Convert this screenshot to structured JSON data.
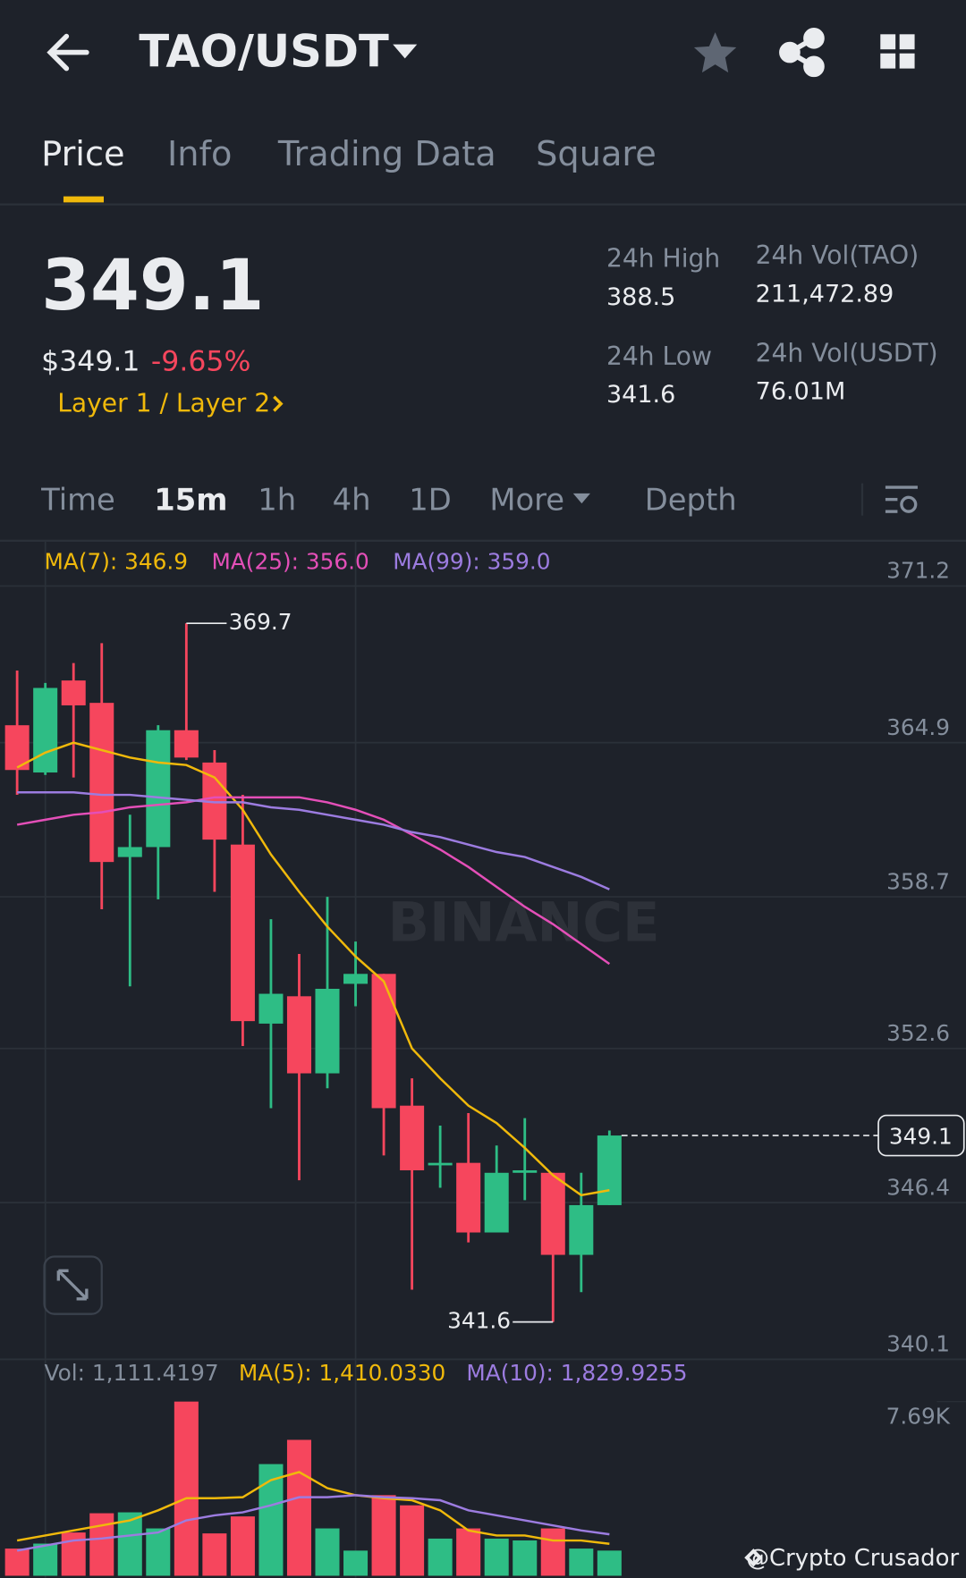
{
  "header": {
    "pair": "TAO/USDT"
  },
  "tabs": [
    "Price",
    "Info",
    "Trading Data",
    "Square"
  ],
  "price": {
    "last": "349.1",
    "usd": "$349.1",
    "change": "-9.65%",
    "tags": "Layer 1 / Layer 2"
  },
  "stats": [
    {
      "label": "24h High",
      "value": "388.5"
    },
    {
      "label": "24h Low",
      "value": "341.6"
    },
    {
      "label": "24h Vol(TAO)",
      "value": "211,472.89"
    },
    {
      "label": "24h Vol(USDT)",
      "value": "76.01M"
    }
  ],
  "intervals": [
    "Time",
    "15m",
    "1h",
    "4h",
    "1D",
    "More",
    "Depth"
  ],
  "chart_data": {
    "type": "candlestick",
    "watermark": "BINANCE",
    "up_color": "#2ebd85",
    "down_color": "#f6465d",
    "open": [
      365.6,
      363.7,
      367.4,
      366.5,
      360.3,
      360.7,
      365.4,
      364.1,
      360.8,
      353.6,
      354.7,
      351.6,
      355.2,
      355.6,
      350.3,
      347.9,
      348.0,
      345.2,
      347.6,
      347.6,
      344.3,
      346.3
    ],
    "high": [
      367.8,
      367.3,
      368.1,
      368.9,
      362.0,
      365.6,
      369.7,
      364.6,
      362.8,
      357.8,
      356.4,
      358.7,
      356.9,
      355.6,
      351.4,
      349.5,
      350.0,
      348.7,
      349.8,
      347.6,
      347.6,
      349.3
    ],
    "low": [
      362.8,
      363.6,
      363.5,
      358.2,
      355.1,
      358.6,
      364.2,
      358.9,
      352.7,
      350.2,
      347.3,
      351.0,
      354.3,
      348.3,
      342.9,
      347.0,
      344.8,
      345.2,
      346.5,
      341.6,
      342.8,
      346.3
    ],
    "close": [
      363.8,
      367.1,
      366.4,
      360.1,
      360.7,
      365.4,
      364.3,
      361.0,
      353.7,
      354.8,
      351.6,
      355.0,
      355.6,
      350.2,
      347.7,
      348.0,
      345.2,
      347.6,
      347.7,
      344.3,
      346.3,
      349.1
    ],
    "ylim": [
      340.1,
      372.9
    ],
    "yticks": [
      371.2,
      364.9,
      358.7,
      352.6,
      346.4,
      340.1
    ],
    "grid": true,
    "ma": [
      {
        "name": "MA(7)",
        "label": "MA(7): 346.9",
        "color": "#f0b90b",
        "values": [
          363.9,
          364.5,
          364.9,
          364.6,
          364.3,
          364.1,
          364.0,
          363.5,
          362.2,
          360.4,
          358.9,
          357.5,
          356.3,
          355.3,
          352.6,
          351.4,
          350.3,
          349.6,
          348.6,
          347.5,
          346.7,
          346.9
        ]
      },
      {
        "name": "MA(25)",
        "label": "MA(25): 356.0",
        "color": "#e44fb8",
        "values": [
          361.6,
          361.8,
          362.0,
          362.1,
          362.3,
          362.4,
          362.5,
          362.7,
          362.7,
          362.7,
          362.7,
          362.5,
          362.2,
          361.8,
          361.2,
          360.6,
          359.9,
          359.1,
          358.3,
          357.6,
          356.8,
          356.0
        ]
      },
      {
        "name": "MA(99)",
        "label": "MA(99): 359.0",
        "color": "#9c7ce0",
        "values": [
          362.9,
          362.9,
          362.9,
          362.8,
          362.8,
          362.7,
          362.6,
          362.5,
          362.5,
          362.3,
          362.2,
          362.0,
          361.8,
          361.6,
          361.3,
          361.1,
          360.8,
          360.5,
          360.3,
          359.9,
          359.5,
          359.0
        ]
      }
    ],
    "annotations": [
      369.7,
      341.6
    ],
    "current_price": 349.1,
    "volume": [
      1200,
      1420,
      1910,
      2760,
      2800,
      2090,
      7690,
      1870,
      2620,
      4930,
      6000,
      2090,
      1110,
      3560,
      3110,
      1640,
      2090,
      1640,
      1560,
      2090,
      1200,
      1111.4197
    ],
    "vol_ylim": [
      0,
      7690
    ],
    "vol_yticks": [
      {
        "value": 7690,
        "label": "7.69K"
      }
    ],
    "vol_labels": [
      "Vol: 1,111.4197",
      "MA(5): 1,410.0330",
      "MA(10): 1,829.9255"
    ],
    "vol_ma": [
      {
        "name": "MA(5)",
        "color": "#f0b90b",
        "values": [
          1556,
          1778,
          2000,
          2223,
          2445,
          2889,
          3423,
          3423,
          3467,
          4223,
          4578,
          3867,
          3556,
          3423,
          3334,
          2889,
          2000,
          1778,
          1778,
          1556,
          1556,
          1410.033
        ]
      },
      {
        "name": "MA(10)",
        "color": "#9c7ce0",
        "values": [
          1111,
          1334,
          1556,
          1645,
          1778,
          1911,
          2445,
          2667,
          2800,
          3112,
          3467,
          3467,
          3556,
          3467,
          3423,
          3334,
          2889,
          2667,
          2445,
          2223,
          2000,
          1829.9255
        ]
      }
    ]
  },
  "footer": "@Crypto Crusador"
}
